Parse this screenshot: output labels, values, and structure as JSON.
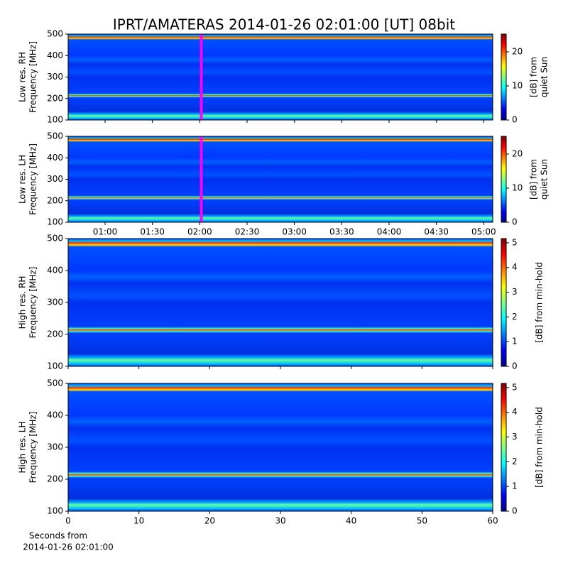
{
  "chart_data": [
    {
      "type": "spectrogram",
      "title": "IPRT/AMATERAS 2014-01-26 02:01:00 [UT]   08bit",
      "ylabel": [
        "Low res. RH",
        "Frequency [MHz]"
      ],
      "ylim": [
        100,
        500
      ],
      "yticks": [
        100,
        200,
        300,
        400,
        500
      ],
      "xlim": [
        0.61,
        5.095
      ],
      "xticks": [
        {
          "value": 1,
          "label": "01:00"
        },
        {
          "value": 1.5,
          "label": "01:30"
        },
        {
          "value": 2,
          "label": "02:00"
        },
        {
          "value": 2.5,
          "label": "02:30"
        },
        {
          "value": 3,
          "label": "03:00"
        },
        {
          "value": 3.5,
          "label": "03:30"
        },
        {
          "value": 4,
          "label": "04:00"
        },
        {
          "value": 4.5,
          "label": "04:30"
        },
        {
          "value": 5,
          "label": "05:00"
        }
      ],
      "xtick_labels": false,
      "cursor_x": 2.0167,
      "cursor_color": "#ff00ff",
      "colorbar_label": [
        "[dB] from",
        "quiet Sun"
      ],
      "clim": [
        0,
        25.2
      ],
      "cticks": [
        0,
        10,
        20
      ],
      "colormap": "jet"
    },
    {
      "type": "spectrogram",
      "ylabel": [
        "Low res. LH",
        "Frequency [MHz]"
      ],
      "ylim": [
        100,
        500
      ],
      "yticks": [
        100,
        200,
        300,
        400,
        500
      ],
      "xlim": [
        0.61,
        5.095
      ],
      "xticks": [
        {
          "value": 1,
          "label": "01:00"
        },
        {
          "value": 1.5,
          "label": "01:30"
        },
        {
          "value": 2,
          "label": "02:00"
        },
        {
          "value": 2.5,
          "label": "02:30"
        },
        {
          "value": 3,
          "label": "03:00"
        },
        {
          "value": 3.5,
          "label": "03:30"
        },
        {
          "value": 4,
          "label": "04:00"
        },
        {
          "value": 4.5,
          "label": "04:30"
        },
        {
          "value": 5,
          "label": "05:00"
        }
      ],
      "xtick_labels": true,
      "cursor_x": 2.0167,
      "cursor_color": "#ff00ff",
      "colorbar_label": [
        "[dB] from",
        "quiet Sun"
      ],
      "clim": [
        0,
        25.2
      ],
      "cticks": [
        0,
        10,
        20
      ],
      "colormap": "jet"
    },
    {
      "type": "spectrogram",
      "ylabel": [
        "High res. RH",
        "Frequency [MHz]"
      ],
      "ylim": [
        100,
        500
      ],
      "yticks": [
        100,
        200,
        300,
        400,
        500
      ],
      "xlim": [
        0,
        60
      ],
      "xticks": [
        0,
        10,
        20,
        30,
        40,
        50,
        60
      ],
      "xtick_labels": false,
      "colorbar_label": [
        "[dB] from min-hold"
      ],
      "clim": [
        0,
        5.17
      ],
      "cticks": [
        0,
        1,
        2,
        3,
        4,
        5
      ],
      "colormap": "jet"
    },
    {
      "type": "spectrogram",
      "ylabel": [
        "High res. LH",
        "Frequency [MHz]"
      ],
      "ylim": [
        100,
        500
      ],
      "yticks": [
        100,
        200,
        300,
        400,
        500
      ],
      "xlim": [
        0,
        60
      ],
      "xticks": [
        0,
        10,
        20,
        30,
        40,
        50,
        60
      ],
      "xtick_labels": true,
      "xlabel": [
        "Seconds from",
        "2014-01-26 02:01:00"
      ],
      "colorbar_label": [
        "[dB] from min-hold"
      ],
      "clim": [
        0,
        5.17
      ],
      "cticks": [
        0,
        1,
        2,
        3,
        4,
        5
      ],
      "colormap": "jet"
    }
  ]
}
